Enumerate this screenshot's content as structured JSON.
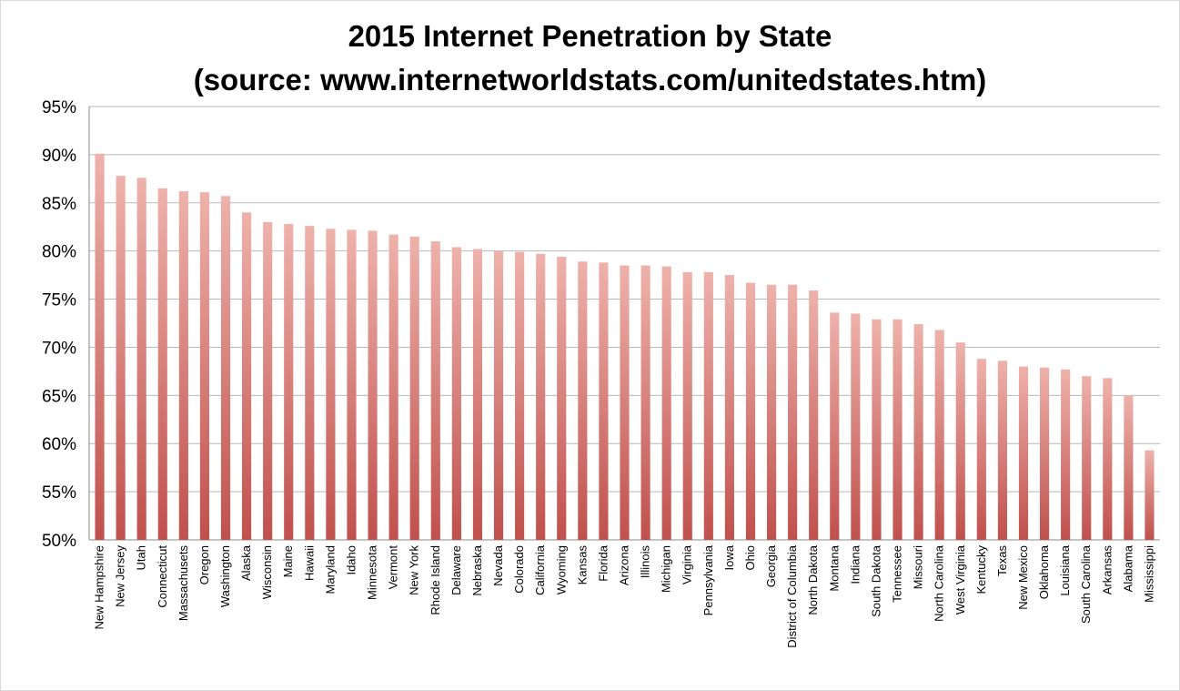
{
  "chart_data": {
    "type": "bar",
    "title": "2015 Internet Penetration by State",
    "subtitle": "(source: www.internetworldstats.com/unitedstates.htm)",
    "xlabel": "",
    "ylabel": "",
    "ylim": [
      50,
      95
    ],
    "y_ticks": [
      "50%",
      "55%",
      "60%",
      "65%",
      "70%",
      "75%",
      "80%",
      "85%",
      "90%",
      "95%"
    ],
    "y_tick_values": [
      50,
      55,
      60,
      65,
      70,
      75,
      80,
      85,
      90,
      95
    ],
    "grid": true,
    "bar_color_top": "#eeb2ab",
    "bar_color_bottom": "#c0504d",
    "categories": [
      "New Hampshire",
      "New Jersey",
      "Utah",
      "Connecticut",
      "Massachusets",
      "Oregon",
      "Washington",
      "Alaska",
      "Wisconsin",
      "Maine",
      "Hawaii",
      "Maryland",
      "Idaho",
      "Minnesota",
      "Vermont",
      "New York",
      "Rhode Island",
      "Delaware",
      "Nebraska",
      "Nevada",
      "Colorado",
      "California",
      "Wyoming",
      "Kansas",
      "Florida",
      "Arizona",
      "Illinois",
      "Michigan",
      "Virginia",
      "Pennsylvania",
      "Iowa",
      "Ohio",
      "Georgia",
      "District of Columbia",
      "North Dakota",
      "Montana",
      "Indiana",
      "South Dakota",
      "Tennessee",
      "Missouri",
      "North Carolina",
      "West Virginia",
      "Kentucky",
      "Texas",
      "New Mexico",
      "Oklahoma",
      "Louisiana",
      "South Carolina",
      "Arkansas",
      "Alabama",
      "Mississippi"
    ],
    "values": [
      90.1,
      87.8,
      87.6,
      86.5,
      86.2,
      86.1,
      85.7,
      84.0,
      83.0,
      82.8,
      82.6,
      82.3,
      82.2,
      82.1,
      81.7,
      81.5,
      81.0,
      80.4,
      80.2,
      80.0,
      79.9,
      79.7,
      79.4,
      78.9,
      78.8,
      78.5,
      78.5,
      78.4,
      77.8,
      77.8,
      77.5,
      76.7,
      76.5,
      76.5,
      75.9,
      73.6,
      73.5,
      72.9,
      72.9,
      72.4,
      71.8,
      70.5,
      68.8,
      68.6,
      68.0,
      67.9,
      67.7,
      67.0,
      66.8,
      65.0,
      59.3
    ]
  }
}
